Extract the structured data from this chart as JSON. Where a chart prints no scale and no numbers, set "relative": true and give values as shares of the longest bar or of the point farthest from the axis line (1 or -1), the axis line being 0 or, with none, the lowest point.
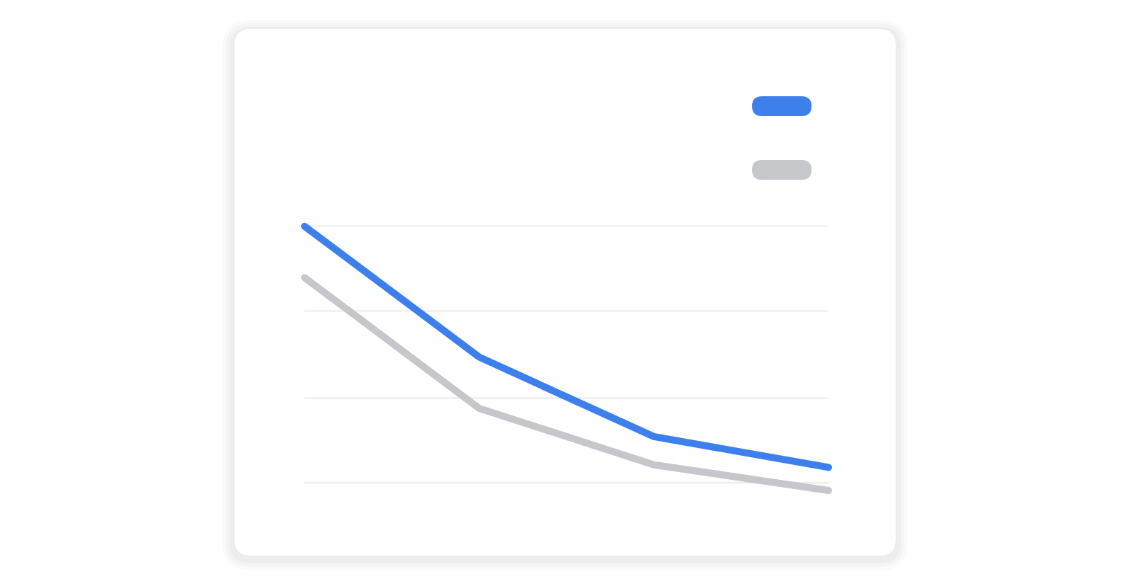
{
  "chart_data": {
    "type": "line",
    "categories": [
      null,
      null,
      null,
      null
    ],
    "relative": true,
    "series": [
      {
        "color": "#3d80ec",
        "values": [
          1,
          0.49,
          0.18,
          0.06
        ]
      },
      {
        "color": "#c5c7ca",
        "values": [
          0.8,
          0.29,
          0.07,
          -0.03
        ]
      }
    ],
    "ref_lines": [
      {
        "axis": "y",
        "value": 0.33,
        "color": "#f1f1f1"
      },
      {
        "axis": "y",
        "value": 0.67,
        "color": "#f1f1f1"
      },
      {
        "axis": "y",
        "value": 1,
        "color": "#f1f1f1"
      }
    ],
    "line_style": "solid"
  }
}
